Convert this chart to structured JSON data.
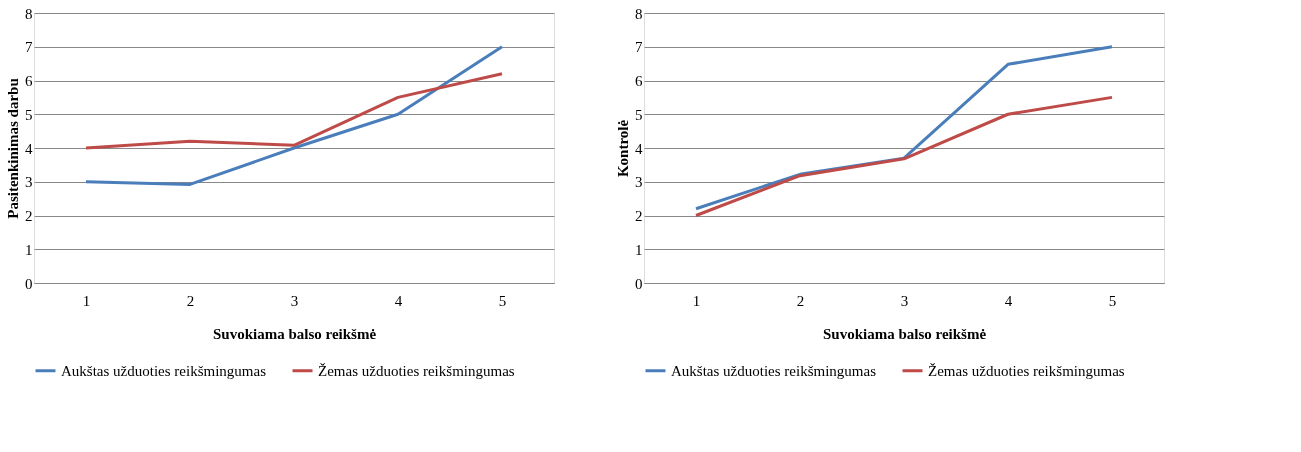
{
  "chart_data": [
    {
      "type": "line",
      "categories": [
        "1",
        "2",
        "3",
        "4",
        "5"
      ],
      "xlabel": "Suvokiama balso reikšmė",
      "ylabel": "Pasitenkinimas darbu",
      "ylim": [
        0,
        8
      ],
      "yticks": [
        0,
        1,
        2,
        3,
        4,
        5,
        6,
        7,
        8
      ],
      "grid": "y",
      "legend": "bottom",
      "series": [
        {
          "name": "Aukštas užduoties reikšmingumas",
          "color": "#4a7ebb",
          "values": [
            3,
            2.92,
            4,
            5,
            7
          ]
        },
        {
          "name": "Žemas užduoties reikšmingumas",
          "color": "#be4b48",
          "values": [
            4,
            4.2,
            4.08,
            5.5,
            6.2
          ]
        }
      ]
    },
    {
      "type": "line",
      "categories": [
        "1",
        "2",
        "3",
        "4",
        "5"
      ],
      "xlabel": "Suvokiama balso reikšmė",
      "ylabel": "Kontrolė",
      "ylim": [
        0,
        8
      ],
      "yticks": [
        0,
        1,
        2,
        3,
        4,
        5,
        6,
        7,
        8
      ],
      "grid": "y",
      "legend": "bottom",
      "series": [
        {
          "name": "Aukštas užduoties reikšmingumas",
          "color": "#4a7ebb",
          "values": [
            2.2,
            3.22,
            3.7,
            6.48,
            7
          ]
        },
        {
          "name": "Žemas užduoties reikšmingumas",
          "color": "#be4b48",
          "values": [
            2,
            3.18,
            3.68,
            5,
            5.5
          ]
        }
      ]
    }
  ]
}
